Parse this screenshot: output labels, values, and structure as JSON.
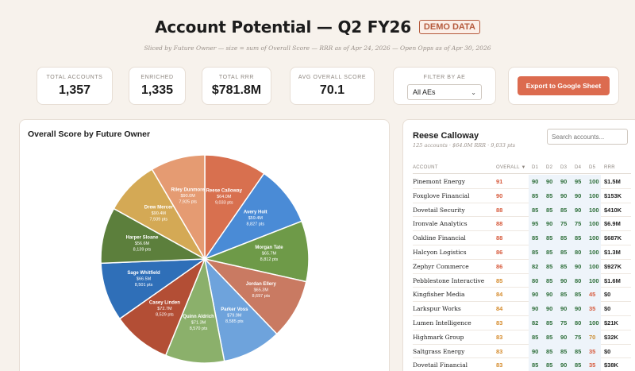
{
  "header": {
    "title": "Account Potential — Q2 FY26",
    "badge": "DEMO DATA",
    "subtitle": "Sliced by Future Owner — size = sum of Overall Score — RRR as of Apr 24, 2026 — Open Opps as of Apr 30, 2026"
  },
  "stats": [
    {
      "label": "TOTAL ACCOUNTS",
      "value": "1,357"
    },
    {
      "label": "ENRICHED",
      "value": "1,335"
    },
    {
      "label": "TOTAL RRR",
      "value": "$781.8M"
    },
    {
      "label": "AVG OVERALL SCORE",
      "value": "70.1"
    }
  ],
  "filter": {
    "label": "FILTER BY AE",
    "value": "All AEs"
  },
  "export_label": "Export to Google Sheet",
  "chart_data": {
    "type": "pie",
    "title": "Overall Score by Future Owner",
    "slices": [
      {
        "name": "Reese Calloway",
        "rrr": "$64.0M",
        "pts": "9,033 pts",
        "value": 9033,
        "color": "#d8704f"
      },
      {
        "name": "Avery Holt",
        "rrr": "$59.4M",
        "pts": "8,827 pts",
        "value": 8827,
        "color": "#4a8bd6"
      },
      {
        "name": "Morgan Tate",
        "rrr": "$65.7M",
        "pts": "8,812 pts",
        "value": 8812,
        "color": "#6e9a48"
      },
      {
        "name": "Jordan Ellery",
        "rrr": "$65.3M",
        "pts": "8,697 pts",
        "value": 8697,
        "color": "#c97a62"
      },
      {
        "name": "Parker Voss",
        "rrr": "$79.9M",
        "pts": "8,585 pts",
        "value": 8585,
        "color": "#6ea3dc"
      },
      {
        "name": "Quinn Aldrich",
        "rrr": "$71.3M",
        "pts": "8,570 pts",
        "value": 8570,
        "color": "#8bb06b"
      },
      {
        "name": "Casey Linden",
        "rrr": "$72.7M",
        "pts": "8,529 pts",
        "value": 8529,
        "color": "#b34e35"
      },
      {
        "name": "Sage Whitfield",
        "rrr": "$66.5M",
        "pts": "8,501 pts",
        "value": 8501,
        "color": "#2f6fb8"
      },
      {
        "name": "Harper Sloane",
        "rrr": "$56.6M",
        "pts": "8,139 pts",
        "value": 8139,
        "color": "#5c7f3c"
      },
      {
        "name": "Drew Mercer",
        "rrr": "$90.4M",
        "pts": "7,939 pts",
        "value": 7939,
        "color": "#d4a955"
      },
      {
        "name": "Riley Dunmore",
        "rrr": "$90.0M",
        "pts": "7,925 pts",
        "value": 7925,
        "color": "#e59b72"
      }
    ]
  },
  "panel": {
    "owner": "Reese Calloway",
    "meta": "125 accounts · $64.0M RRR · 9,033 pts",
    "search_placeholder": "Search accounts...",
    "columns": [
      "ACCOUNT",
      "OVERALL ▼",
      "D1",
      "D2",
      "D3",
      "D4",
      "D5",
      "RRR"
    ],
    "rows": [
      {
        "account": "Pinemont Energy",
        "overall": "91",
        "d": [
          "90",
          "90",
          "90",
          "95",
          "100"
        ],
        "rrr": "$1.5M"
      },
      {
        "account": "Foxglove Financial",
        "overall": "90",
        "d": [
          "85",
          "85",
          "90",
          "90",
          "100"
        ],
        "rrr": "$153K"
      },
      {
        "account": "Dovetail Security",
        "overall": "88",
        "d": [
          "85",
          "85",
          "85",
          "90",
          "100"
        ],
        "rrr": "$410K"
      },
      {
        "account": "Ironvale Analytics",
        "overall": "88",
        "d": [
          "95",
          "90",
          "75",
          "75",
          "100"
        ],
        "rrr": "$6.9M"
      },
      {
        "account": "Oakline Financial",
        "overall": "88",
        "d": [
          "85",
          "85",
          "85",
          "85",
          "100"
        ],
        "rrr": "$687K"
      },
      {
        "account": "Halcyon Logistics",
        "overall": "86",
        "d": [
          "85",
          "85",
          "85",
          "80",
          "100"
        ],
        "rrr": "$1.3M"
      },
      {
        "account": "Zephyr Commerce",
        "overall": "86",
        "d": [
          "82",
          "85",
          "85",
          "90",
          "100"
        ],
        "rrr": "$927K"
      },
      {
        "account": "Pebblestone Interactive",
        "overall": "85",
        "d": [
          "80",
          "85",
          "90",
          "80",
          "100"
        ],
        "rrr": "$1.6M"
      },
      {
        "account": "Kingfisher Media",
        "overall": "84",
        "d": [
          "90",
          "90",
          "85",
          "85",
          "45"
        ],
        "rrr": "$0"
      },
      {
        "account": "Larkspur Works",
        "overall": "84",
        "d": [
          "90",
          "90",
          "90",
          "90",
          "35"
        ],
        "rrr": "$0"
      },
      {
        "account": "Lumen Intelligence",
        "overall": "83",
        "d": [
          "82",
          "85",
          "75",
          "80",
          "100"
        ],
        "rrr": "$21K"
      },
      {
        "account": "Highmark Group",
        "overall": "83",
        "d": [
          "85",
          "85",
          "90",
          "75",
          "70"
        ],
        "rrr": "$32K"
      },
      {
        "account": "Saltgrass Energy",
        "overall": "83",
        "d": [
          "90",
          "85",
          "85",
          "85",
          "35"
        ],
        "rrr": "$0"
      },
      {
        "account": "Dovetail Financial",
        "overall": "83",
        "d": [
          "85",
          "85",
          "90",
          "85",
          "35"
        ],
        "rrr": "$38K"
      }
    ]
  }
}
